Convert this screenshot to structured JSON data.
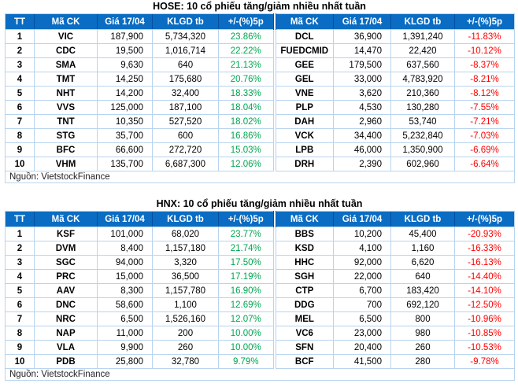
{
  "colors": {
    "header_bg": "#0a6cc2",
    "header_divider": "#084f9e",
    "grid": "#b8d4ee",
    "gain": "#00a651",
    "loss": "#ff0000",
    "text": "#000000",
    "background": "#ffffff"
  },
  "chart_data": [
    {
      "type": "table",
      "title": "HOSE: 10 cổ phiếu tăng/giảm nhiều nhất tuần",
      "columns": [
        "TT",
        "Mã CK",
        "Giá 17/04",
        "KLGD tb",
        "+/-(%)5p",
        "Mã CK",
        "Giá 17/04",
        "KLGD tb",
        "+/-(%)5p"
      ],
      "rows": [
        [
          "1",
          "VIC",
          "187,900",
          "5,734,320",
          "23.86%",
          "DCL",
          "36,900",
          "1,391,240",
          "-11.83%"
        ],
        [
          "2",
          "CDC",
          "19,500",
          "1,016,714",
          "22.22%",
          "FUEDCMID",
          "14,470",
          "22,420",
          "-10.12%"
        ],
        [
          "3",
          "SMA",
          "9,630",
          "640",
          "21.13%",
          "GEE",
          "179,500",
          "637,560",
          "-8.37%"
        ],
        [
          "4",
          "TMT",
          "14,250",
          "175,680",
          "20.76%",
          "GEL",
          "33,000",
          "4,783,920",
          "-8.21%"
        ],
        [
          "5",
          "NHT",
          "14,200",
          "32,400",
          "18.33%",
          "VNE",
          "3,620",
          "210,360",
          "-8.12%"
        ],
        [
          "6",
          "VVS",
          "125,000",
          "187,100",
          "18.04%",
          "PLP",
          "4,530",
          "130,280",
          "-7.55%"
        ],
        [
          "7",
          "TNT",
          "10,350",
          "527,520",
          "18.02%",
          "DAH",
          "2,960",
          "53,740",
          "-7.21%"
        ],
        [
          "8",
          "STG",
          "35,700",
          "600",
          "16.86%",
          "VCK",
          "34,400",
          "5,232,840",
          "-7.03%"
        ],
        [
          "9",
          "BFC",
          "66,600",
          "272,720",
          "15.03%",
          "LPB",
          "46,000",
          "1,350,900",
          "-6.69%"
        ],
        [
          "10",
          "VHM",
          "135,700",
          "6,687,300",
          "12.06%",
          "DRH",
          "2,390",
          "602,960",
          "-6.64%"
        ]
      ],
      "source": "Nguồn: VietstockFinance"
    },
    {
      "type": "table",
      "title": "HNX: 10 cổ phiếu tăng/giảm nhiều nhất tuần",
      "columns": [
        "TT",
        "Mã CK",
        "Giá 17/04",
        "KLGD tb",
        "+/-(%)5p",
        "Mã CK",
        "Giá 17/04",
        "KLGD tb",
        "+/-(%)5p"
      ],
      "rows": [
        [
          "1",
          "KSF",
          "101,000",
          "68,020",
          "23.77%",
          "BBS",
          "10,200",
          "45,400",
          "-20.93%"
        ],
        [
          "2",
          "DVM",
          "8,400",
          "1,157,180",
          "21.74%",
          "KSD",
          "4,100",
          "1,160",
          "-16.33%"
        ],
        [
          "3",
          "SGC",
          "94,000",
          "3,320",
          "17.50%",
          "HHC",
          "92,000",
          "6,620",
          "-16.13%"
        ],
        [
          "4",
          "PRC",
          "15,000",
          "36,500",
          "17.19%",
          "SGH",
          "22,000",
          "640",
          "-14.40%"
        ],
        [
          "5",
          "AAV",
          "8,300",
          "1,157,780",
          "16.90%",
          "CTP",
          "6,700",
          "183,420",
          "-14.10%"
        ],
        [
          "6",
          "DNC",
          "58,600",
          "1,100",
          "12.69%",
          "DDG",
          "700",
          "692,120",
          "-12.50%"
        ],
        [
          "7",
          "NRC",
          "6,500",
          "1,526,160",
          "12.07%",
          "MEL",
          "6,500",
          "800",
          "-10.96%"
        ],
        [
          "8",
          "NAP",
          "11,000",
          "200",
          "10.00%",
          "VC6",
          "23,000",
          "980",
          "-10.85%"
        ],
        [
          "9",
          "VLA",
          "9,900",
          "260",
          "10.00%",
          "SFN",
          "20,400",
          "260",
          "-10.53%"
        ],
        [
          "10",
          "PDB",
          "25,800",
          "32,780",
          "9.79%",
          "BCF",
          "41,500",
          "280",
          "-9.78%"
        ]
      ],
      "source": "Nguồn: VietstockFinance"
    }
  ]
}
